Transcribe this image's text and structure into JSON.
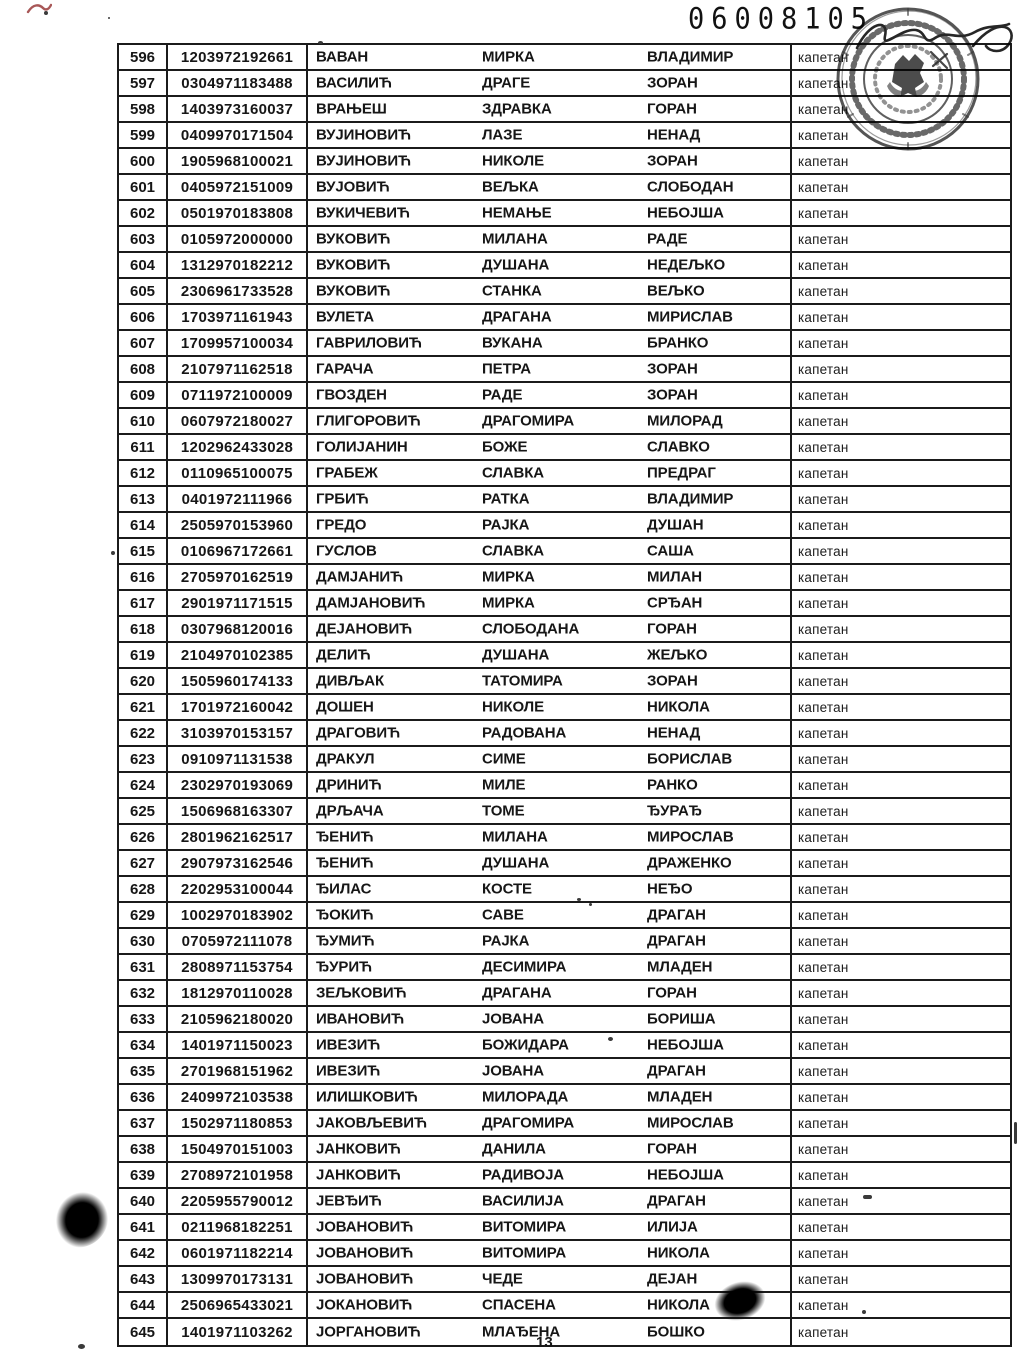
{
  "page": {
    "doc_number": "06008105",
    "page_number": "13"
  },
  "colors": {
    "ink": "#1b1b1b",
    "stamp_ink": "#262626",
    "red_mark": "#8b2020"
  },
  "decorations": {
    "stamp": "circular-seal-stamp-with-illegible-cyrillic-text",
    "signature": "handwritten-signature-scrawl",
    "ink_blot_left_margin": "ink-blot",
    "smudge_row_644": "ink-smudge"
  },
  "table": {
    "columns": [
      "row-number",
      "personal-id",
      "surname",
      "father-name",
      "first-name",
      "rank"
    ],
    "rows": [
      {
        "num": "596",
        "id": "1203972192661",
        "surname": "ВАВАН",
        "father": "МИРКА",
        "name": "ВЛАДИМИР",
        "rank": "капетан"
      },
      {
        "num": "597",
        "id": "0304971183488",
        "surname": "ВАСИЛИЋ",
        "father": "ДРАГЕ",
        "name": "ЗОРАН",
        "rank": "капетан"
      },
      {
        "num": "598",
        "id": "1403973160037",
        "surname": "ВРАЊЕШ",
        "father": "ЗДРАВКА",
        "name": "ГОРАН",
        "rank": "капетан"
      },
      {
        "num": "599",
        "id": "0409970171504",
        "surname": "ВУЈИНОВИЋ",
        "father": "ЛАЗЕ",
        "name": "НЕНАД",
        "rank": "капетан"
      },
      {
        "num": "600",
        "id": "1905968100021",
        "surname": "ВУЈИНОВИЋ",
        "father": "НИКОЛЕ",
        "name": "ЗОРАН",
        "rank": "капетан"
      },
      {
        "num": "601",
        "id": "0405972151009",
        "surname": "ВУЈОВИЋ",
        "father": "ВЕЉКА",
        "name": "СЛОБОДАН",
        "rank": "капетан"
      },
      {
        "num": "602",
        "id": "0501970183808",
        "surname": "ВУКИЧЕВИЋ",
        "father": "НЕМАЊЕ",
        "name": "НЕБОЈША",
        "rank": "капетан"
      },
      {
        "num": "603",
        "id": "0105972000000",
        "surname": "ВУКОВИЋ",
        "father": "МИЛАНА",
        "name": "РАДЕ",
        "rank": "капетан"
      },
      {
        "num": "604",
        "id": "1312970182212",
        "surname": "ВУКОВИЋ",
        "father": "ДУШАНА",
        "name": "НЕДЕЉКО",
        "rank": "капетан"
      },
      {
        "num": "605",
        "id": "2306961733528",
        "surname": "ВУКОВИЋ",
        "father": "СТАНКА",
        "name": "ВЕЉКО",
        "rank": "капетан"
      },
      {
        "num": "606",
        "id": "1703971161943",
        "surname": "ВУЛЕТА",
        "father": "ДРАГАНА",
        "name": "МИРИСЛАВ",
        "rank": "капетан"
      },
      {
        "num": "607",
        "id": "1709957100034",
        "surname": "ГАВРИЛОВИЋ",
        "father": "ВУКАНА",
        "name": "БРАНКО",
        "rank": "капетан"
      },
      {
        "num": "608",
        "id": "2107971162518",
        "surname": "ГАРАЧА",
        "father": "ПЕТРА",
        "name": "ЗОРАН",
        "rank": "капетан"
      },
      {
        "num": "609",
        "id": "0711972100009",
        "surname": "ГВОЗДЕН",
        "father": "РАДЕ",
        "name": "ЗОРАН",
        "rank": "капетан"
      },
      {
        "num": "610",
        "id": "0607972180027",
        "surname": "ГЛИГОРОВИЋ",
        "father": "ДРАГОМИРА",
        "name": "МИЛОРАД",
        "rank": "капетан"
      },
      {
        "num": "611",
        "id": "1202962433028",
        "surname": "ГОЛИЈАНИН",
        "father": "БОЖЕ",
        "name": "СЛАВКО",
        "rank": "капетан"
      },
      {
        "num": "612",
        "id": "0110965100075",
        "surname": "ГРАБЕЖ",
        "father": "СЛАВКА",
        "name": "ПРЕДРАГ",
        "rank": "капетан"
      },
      {
        "num": "613",
        "id": "0401972111966",
        "surname": "ГРБИЋ",
        "father": "РАТКА",
        "name": "ВЛАДИМИР",
        "rank": "капетан"
      },
      {
        "num": "614",
        "id": "2505970153960",
        "surname": "ГРЕДО",
        "father": "РАЈКА",
        "name": "ДУШАН",
        "rank": "капетан"
      },
      {
        "num": "615",
        "id": "0106967172661",
        "surname": "ГУСЛОВ",
        "father": "СЛАВКА",
        "name": "САША",
        "rank": "капетан"
      },
      {
        "num": "616",
        "id": "2705970162519",
        "surname": "ДАМЈАНИЋ",
        "father": "МИРКА",
        "name": "МИЛАН",
        "rank": "капетан"
      },
      {
        "num": "617",
        "id": "2901971171515",
        "surname": "ДАМЈАНОВИЋ",
        "father": "МИРКА",
        "name": "СРЂАН",
        "rank": "капетан"
      },
      {
        "num": "618",
        "id": "0307968120016",
        "surname": "ДЕЈАНОВИЋ",
        "father": "СЛОБОДАНА",
        "name": "ГОРАН",
        "rank": "капетан"
      },
      {
        "num": "619",
        "id": "2104970102385",
        "surname": "ДЕЛИЋ",
        "father": "ДУШАНА",
        "name": "ЖЕЉКО",
        "rank": "капетан"
      },
      {
        "num": "620",
        "id": "1505960174133",
        "surname": "ДИВЉАК",
        "father": "ТАТОМИРА",
        "name": "ЗОРАН",
        "rank": "капетан"
      },
      {
        "num": "621",
        "id": "1701972160042",
        "surname": "ДОШЕН",
        "father": "НИКОЛЕ",
        "name": "НИКОЛА",
        "rank": "капетан"
      },
      {
        "num": "622",
        "id": "3103970153157",
        "surname": "ДРАГОВИЋ",
        "father": "РАДОВАНА",
        "name": "НЕНАД",
        "rank": "капетан"
      },
      {
        "num": "623",
        "id": "0910971131538",
        "surname": "ДРАКУЛ",
        "father": "СИМЕ",
        "name": "БОРИСЛАВ",
        "rank": "капетан"
      },
      {
        "num": "624",
        "id": "2302970193069",
        "surname": "ДРИНИЋ",
        "father": "МИЛЕ",
        "name": "РАНКО",
        "rank": "капетан"
      },
      {
        "num": "625",
        "id": "1506968163307",
        "surname": "ДРЉАЧА",
        "father": "ТОМЕ",
        "name": "ЂУРАЂ",
        "rank": "капетан"
      },
      {
        "num": "626",
        "id": "2801962162517",
        "surname": "ЂЕНИЋ",
        "father": "МИЛАНА",
        "name": "МИРОСЛАВ",
        "rank": "капетан"
      },
      {
        "num": "627",
        "id": "2907973162546",
        "surname": "ЂЕНИЋ",
        "father": "ДУШАНА",
        "name": "ДРАЖЕНКО",
        "rank": "капетан"
      },
      {
        "num": "628",
        "id": "2202953100044",
        "surname": "ЂИЛАС",
        "father": "КОСТЕ",
        "name": "НЕЂО",
        "rank": "капетан"
      },
      {
        "num": "629",
        "id": "1002970183902",
        "surname": "ЂОКИЋ",
        "father": "САВЕ",
        "name": "ДРАГАН",
        "rank": "капетан"
      },
      {
        "num": "630",
        "id": "0705972111078",
        "surname": "ЂУМИЋ",
        "father": "РАЈКА",
        "name": "ДРАГАН",
        "rank": "капетан"
      },
      {
        "num": "631",
        "id": "2808971153754",
        "surname": "ЂУРИЋ",
        "father": "ДЕСИМИРА",
        "name": "МЛАДЕН",
        "rank": "капетан"
      },
      {
        "num": "632",
        "id": "1812970110028",
        "surname": "ЗЕЉКОВИЋ",
        "father": "ДРАГАНА",
        "name": "ГОРАН",
        "rank": "капетан"
      },
      {
        "num": "633",
        "id": "2105962180020",
        "surname": "ИВАНОВИЋ",
        "father": "ЈОВАНА",
        "name": "БОРИША",
        "rank": "капетан"
      },
      {
        "num": "634",
        "id": "1401971150023",
        "surname": "ИВЕЗИЋ",
        "father": "БОЖИДАРА",
        "name": "НЕБОЈША",
        "rank": "капетан"
      },
      {
        "num": "635",
        "id": "2701968151962",
        "surname": "ИВЕЗИЋ",
        "father": "ЈОВАНА",
        "name": "ДРАГАН",
        "rank": "капетан"
      },
      {
        "num": "636",
        "id": "2409972103538",
        "surname": "ИЛИШКОВИЋ",
        "father": "МИЛОРАДА",
        "name": "МЛАДЕН",
        "rank": "капетан"
      },
      {
        "num": "637",
        "id": "1502971180853",
        "surname": "ЈАКОВЉЕВИЋ",
        "father": "ДРАГОМИРА",
        "name": "МИРОСЛАВ",
        "rank": "капетан"
      },
      {
        "num": "638",
        "id": "1504970151003",
        "surname": "ЈАНКОВИЋ",
        "father": "ДАНИЛА",
        "name": "ГОРАН",
        "rank": "капетан"
      },
      {
        "num": "639",
        "id": "2708972101958",
        "surname": "ЈАНКОВИЋ",
        "father": "РАДИВОЈА",
        "name": "НЕБОЈША",
        "rank": "капетан"
      },
      {
        "num": "640",
        "id": "2205955790012",
        "surname": "ЈЕВЂИЋ",
        "father": "ВАСИЛИЈА",
        "name": "ДРАГАН",
        "rank": "капетан"
      },
      {
        "num": "641",
        "id": "0211968182251",
        "surname": "ЈОВАНОВИЋ",
        "father": "ВИТОМИРА",
        "name": "ИЛИЈА",
        "rank": "капетан"
      },
      {
        "num": "642",
        "id": "0601971182214",
        "surname": "ЈОВАНОВИЋ",
        "father": "ВИТОМИРА",
        "name": "НИКОЛА",
        "rank": "капетан"
      },
      {
        "num": "643",
        "id": "1309970173131",
        "surname": "ЈОВАНОВИЋ",
        "father": "ЧЕДЕ",
        "name": "ДЕЈАН",
        "rank": "капетан"
      },
      {
        "num": "644",
        "id": "2506965433021",
        "surname": "ЈОКАНОВИЋ",
        "father": "СПАСЕНА",
        "name": "НИКОЛА",
        "rank": "капетан"
      },
      {
        "num": "645",
        "id": "1401971103262",
        "surname": "ЈОРГАНОВИЋ",
        "father": "МЛАЂЕНА",
        "name": "БОШКО",
        "rank": "капетан"
      }
    ]
  }
}
